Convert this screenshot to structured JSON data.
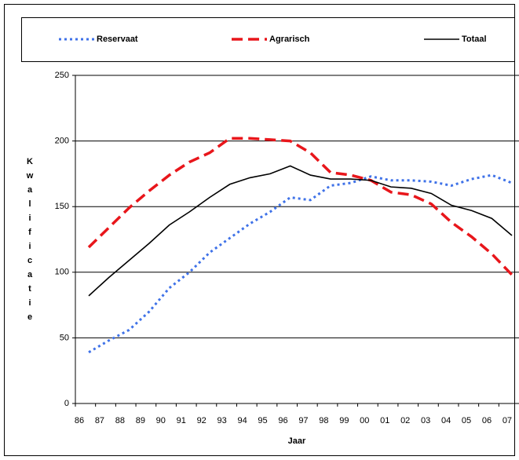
{
  "chart_data": {
    "type": "line",
    "x_label": "Jaar",
    "y_label": "Kwalificatie",
    "categories": [
      "86",
      "87",
      "88",
      "89",
      "90",
      "91",
      "92",
      "93",
      "94",
      "95",
      "96",
      "97",
      "98",
      "99",
      "00",
      "01",
      "02",
      "03",
      "04",
      "05",
      "06",
      "07"
    ],
    "series": [
      {
        "name": "Reservaat",
        "color": "#3f72e8",
        "style": "dotted",
        "values": [
          39,
          48,
          56,
          70,
          88,
          100,
          115,
          126,
          137,
          146,
          157,
          155,
          166,
          168,
          173,
          170,
          170,
          169,
          166,
          171,
          174,
          168
        ]
      },
      {
        "name": "Agrarisch",
        "color": "#e8161b",
        "style": "dashed",
        "values": [
          119,
          134,
          149,
          162,
          174,
          184,
          191,
          202,
          202,
          201,
          200,
          191,
          176,
          174,
          170,
          161,
          159,
          152,
          138,
          127,
          114,
          98
        ]
      },
      {
        "name": "Totaal",
        "color": "#000000",
        "style": "solid",
        "values": [
          82,
          96,
          109,
          122,
          136,
          146,
          157,
          167,
          172,
          175,
          181,
          174,
          171,
          171,
          170,
          165,
          164,
          160,
          151,
          147,
          141,
          128
        ]
      }
    ],
    "ylim": [
      0,
      250
    ],
    "yticks": [
      0,
      50,
      100,
      150,
      200,
      250
    ],
    "grid": true,
    "legend": "top"
  }
}
